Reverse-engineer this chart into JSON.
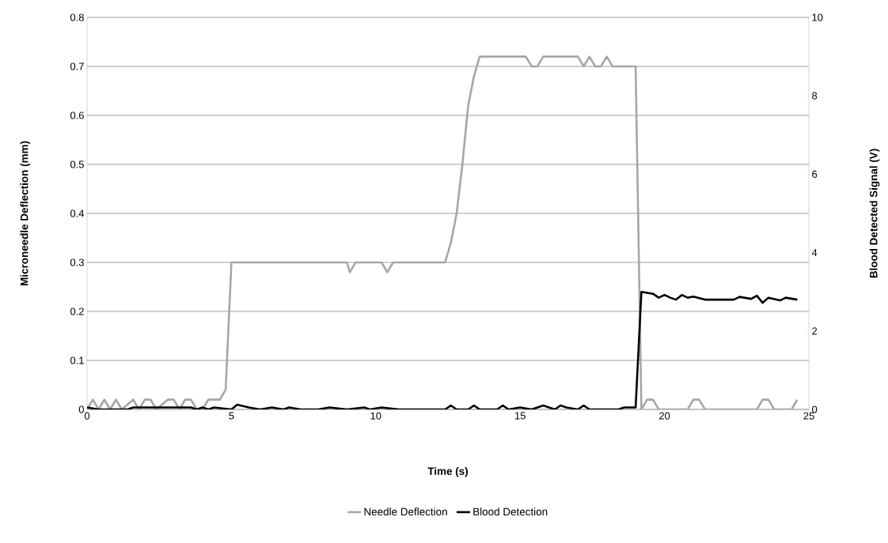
{
  "chart_data": {
    "type": "line",
    "xlabel": "Time (s)",
    "ylabel": "Microneedle Deflection (mm)",
    "y2label": "Blood Detected Signal (V)",
    "xlim": [
      0,
      25
    ],
    "xticks": [
      0,
      5,
      10,
      15,
      20,
      25
    ],
    "ylim": [
      0,
      0.8
    ],
    "yticks": [
      0,
      0.1,
      0.2,
      0.3,
      0.4,
      0.5,
      0.6,
      0.7,
      0.8
    ],
    "y2lim": [
      0,
      10
    ],
    "y2ticks": [
      0,
      2,
      4,
      6,
      8,
      10
    ],
    "grid": "y",
    "legend": "bottom",
    "marker": "none",
    "line_style": "solid",
    "series": [
      {
        "name": "Needle Deflection",
        "color": "#a6a6a6",
        "x": [
          0,
          0.2,
          0.4,
          0.6,
          0.8,
          1.0,
          1.2,
          1.6,
          1.8,
          2.0,
          2.2,
          2.4,
          2.8,
          3.0,
          3.2,
          3.4,
          3.6,
          3.8,
          4.0,
          4.2,
          4.6,
          4.8,
          5.0,
          9.0,
          9.1,
          9.3,
          10.2,
          10.4,
          10.6,
          12.4,
          12.6,
          12.8,
          13.0,
          13.2,
          13.4,
          13.6,
          15.2,
          15.4,
          15.6,
          15.8,
          17.0,
          17.2,
          17.4,
          17.6,
          17.8,
          18.0,
          18.2,
          19.0,
          19.2,
          19.4,
          19.6,
          19.8,
          20.8,
          21.0,
          21.2,
          21.4,
          23.2,
          23.4,
          23.6,
          23.8,
          24.4,
          24.6
        ],
        "values": [
          0,
          0.02,
          0,
          0.02,
          0,
          0.02,
          0,
          0.02,
          0,
          0.02,
          0.02,
          0,
          0.02,
          0.02,
          0,
          0.02,
          0.02,
          0,
          0,
          0.02,
          0.02,
          0.04,
          0.3,
          0.3,
          0.28,
          0.3,
          0.3,
          0.28,
          0.3,
          0.3,
          0.34,
          0.4,
          0.5,
          0.62,
          0.68,
          0.72,
          0.72,
          0.7,
          0.7,
          0.72,
          0.72,
          0.7,
          0.72,
          0.7,
          0.7,
          0.72,
          0.7,
          0.7,
          0,
          0.02,
          0.02,
          0,
          0,
          0.02,
          0.02,
          0,
          0,
          0.02,
          0.02,
          0,
          0,
          0.02
        ]
      },
      {
        "name": "Blood Detection",
        "color": "#000000",
        "axis": "y2",
        "x": [
          0,
          0.4,
          1.4,
          1.6,
          2.0,
          2.4,
          3.6,
          3.8,
          4.0,
          4.2,
          4.4,
          5.0,
          5.2,
          5.6,
          6.0,
          6.4,
          6.8,
          7.0,
          7.4,
          8.0,
          8.4,
          9.0,
          9.6,
          9.8,
          10.2,
          10.8,
          11.2,
          12.4,
          12.6,
          12.8,
          13.2,
          13.4,
          13.6,
          14.2,
          14.4,
          14.6,
          15.0,
          15.4,
          15.6,
          15.8,
          16.2,
          16.4,
          16.6,
          17.0,
          17.2,
          17.4,
          18.4,
          18.6,
          19.0,
          19.2,
          19.6,
          19.8,
          20.0,
          20.2,
          20.4,
          20.6,
          20.8,
          21.0,
          21.4,
          22.4,
          22.6,
          23.0,
          23.2,
          23.4,
          23.6,
          24.0,
          24.2,
          24.6
        ],
        "values": [
          0.05,
          0,
          0,
          0.05,
          0.05,
          0.05,
          0.05,
          0,
          0.05,
          0,
          0.05,
          0,
          0.12,
          0.05,
          0,
          0.05,
          0,
          0.05,
          0,
          0,
          0.05,
          0,
          0.05,
          0,
          0.05,
          0,
          0,
          0,
          0.1,
          0,
          0,
          0.1,
          0,
          0,
          0.1,
          0,
          0.05,
          0,
          0.05,
          0.1,
          0,
          0.1,
          0.05,
          0,
          0.1,
          0,
          0,
          0.05,
          0.05,
          3.0,
          2.95,
          2.85,
          2.92,
          2.85,
          2.8,
          2.92,
          2.85,
          2.88,
          2.8,
          2.8,
          2.87,
          2.82,
          2.9,
          2.72,
          2.85,
          2.78,
          2.85,
          2.8
        ]
      }
    ]
  }
}
